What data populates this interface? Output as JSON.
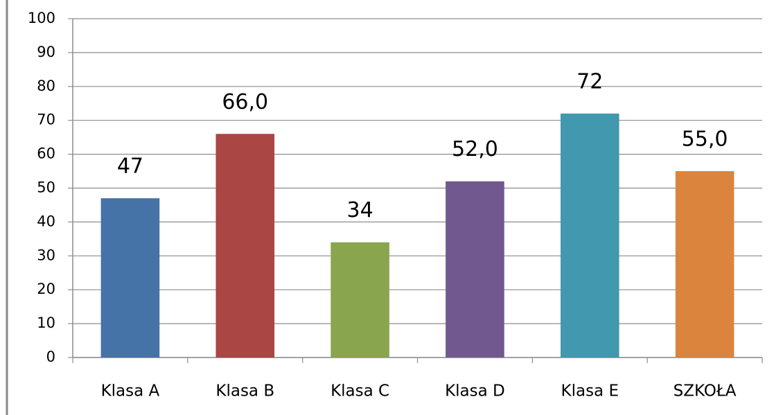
{
  "chart_data": {
    "type": "bar",
    "categories": [
      "Klasa A",
      "Klasa B",
      "Klasa C",
      "Klasa D",
      "Klasa E",
      "SZKOŁA"
    ],
    "values": [
      47,
      66,
      34,
      52,
      72,
      55
    ],
    "value_labels": [
      "47",
      "66,0",
      "34",
      "52,0",
      "72",
      "55,0"
    ],
    "colors": [
      "#4572a7",
      "#aa4643",
      "#89a54e",
      "#71588f",
      "#4198af",
      "#db843d"
    ],
    "ylim": [
      0,
      100
    ],
    "yticks": [
      0,
      10,
      20,
      30,
      40,
      50,
      60,
      70,
      80,
      90,
      100
    ],
    "grid": true
  }
}
